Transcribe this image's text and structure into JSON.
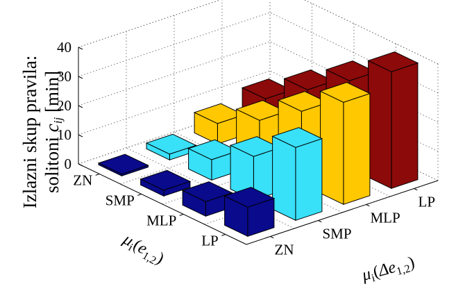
{
  "chart_data": {
    "type": "bar3d",
    "zlabel": "Izlazni skup pravila: solitoni c_ij [min]",
    "zlabel_lines": [
      "Izlazni skup pravila:",
      "solitoni "
    ],
    "zlabel_symbol": "c",
    "zlabel_subscript": "ij",
    "zlabel_unit": " [min]",
    "zlim": [
      0,
      40
    ],
    "zticks": [
      "0",
      "10",
      "20",
      "30",
      "40"
    ],
    "x_axis": {
      "label": "μi(e1,2)",
      "symbol": "μ",
      "sub": "i",
      "arg": "e",
      "arg_sub": "1,2",
      "categories": [
        "LP",
        "MLP",
        "SMP",
        "ZN"
      ]
    },
    "y_axis": {
      "label": "μi(Δe1,2)",
      "symbol": "μ",
      "sub": "i",
      "arg": "Δe",
      "arg_sub": "1,2",
      "categories": [
        "ZN",
        "SMP",
        "MLP",
        "LP"
      ]
    },
    "grid": true,
    "series": [
      {
        "y_category": "ZN",
        "color": "#0a0a8c",
        "values": [
          10,
          5,
          2,
          0
        ]
      },
      {
        "y_category": "SMP",
        "color": "#38e0f8",
        "values": [
          25,
          15,
          7,
          2
        ]
      },
      {
        "y_category": "MLP",
        "color": "#ffc800",
        "values": [
          35,
          25,
          15,
          7
        ]
      },
      {
        "y_category": "LP",
        "color": "#8c0a0a",
        "values": [
          40,
          30,
          20,
          10
        ]
      }
    ]
  }
}
